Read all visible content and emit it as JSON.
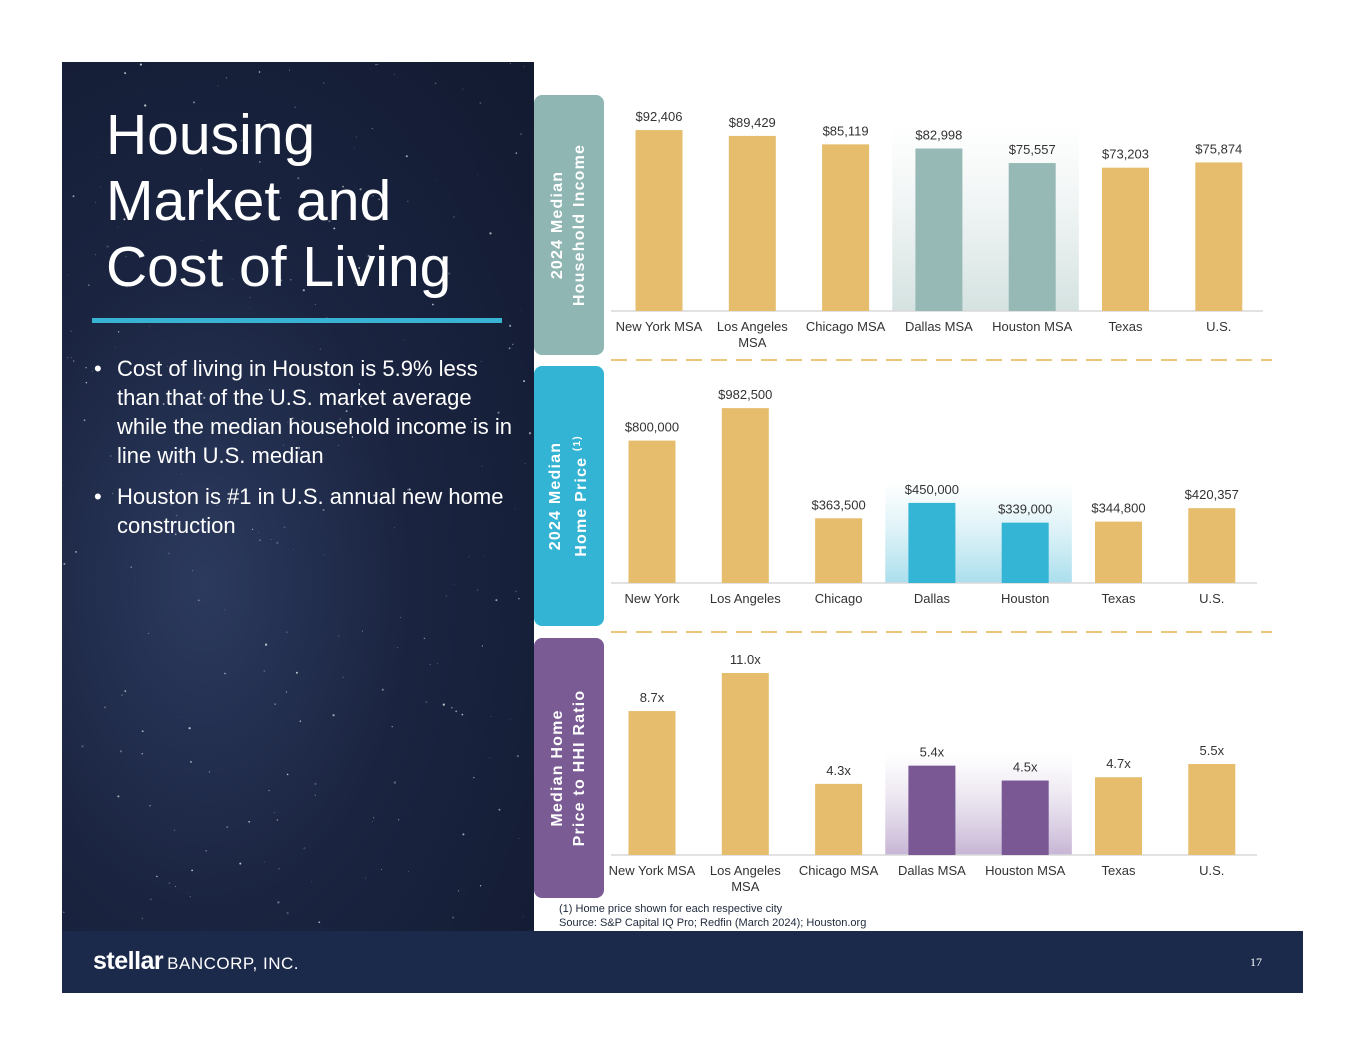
{
  "title": [
    "Housing",
    "Market and",
    "Cost of Living"
  ],
  "bullets": [
    "Cost of living in Houston is 5.9% less than that of the U.S. market average while the median household income is in line with U.S. median",
    "Houston is #1 in U.S. annual new home construction"
  ],
  "bullet_symbol": "•",
  "footnotes": {
    "note1": "(1) Home price shown for each respective city",
    "source": "Source: S&P Capital IQ Pro; Redfin (March 2024); Houston.org"
  },
  "footer": {
    "logo_main": "stellar",
    "logo_sub": "BANCORP, INC.",
    "page_number": "17"
  },
  "side_labels": [
    {
      "lines": [
        "2024 Median",
        "Household Income"
      ],
      "sup": ""
    },
    {
      "lines": [
        "2024 Median",
        "Home Price"
      ],
      "sup": "(1)"
    },
    {
      "lines": [
        "Median Home",
        "Price to HHI Ratio"
      ],
      "sup": ""
    }
  ],
  "colors": {
    "gold": "#e6bd6c",
    "teal_label": "#8fb6b3",
    "teal_bar": "#96b9b6",
    "blue_label": "#34b4d4",
    "blue_bar": "#35b5d6",
    "purple_label": "#7a5b94",
    "purple_bar": "#7a5894",
    "divider": "#e9c77a",
    "axis": "#d9d9d9",
    "text": "#333333"
  },
  "chart_data": [
    {
      "type": "bar",
      "title": "2024 Median Household Income",
      "categories": [
        "New York MSA",
        "Los Angeles MSA",
        "Chicago MSA",
        "Dallas MSA",
        "Houston MSA",
        "Texas",
        "U.S."
      ],
      "values": [
        92406,
        89429,
        85119,
        82998,
        75557,
        73203,
        75874
      ],
      "value_labels": [
        "$92,406",
        "$89,429",
        "$85,119",
        "$82,998",
        "$75,557",
        "$73,203",
        "$75,874"
      ],
      "highlight": [
        "Dallas MSA",
        "Houston MSA"
      ],
      "ylim": [
        0,
        95000
      ]
    },
    {
      "type": "bar",
      "title": "2024 Median Home Price (1)",
      "categories": [
        "New York",
        "Los Angeles",
        "Chicago",
        "Dallas",
        "Houston",
        "Texas",
        "U.S."
      ],
      "values": [
        800000,
        982500,
        363500,
        450000,
        339000,
        344800,
        420357
      ],
      "value_labels": [
        "$800,000",
        "$982,500",
        "$363,500",
        "$450,000",
        "$339,000",
        "$344,800",
        "$420,357"
      ],
      "highlight": [
        "Dallas",
        "Houston"
      ],
      "ylim": [
        0,
        1000000
      ]
    },
    {
      "type": "bar",
      "title": "Median Home Price to HHI Ratio",
      "categories": [
        "New York MSA",
        "Los Angeles MSA",
        "Chicago MSA",
        "Dallas MSA",
        "Houston MSA",
        "Texas",
        "U.S."
      ],
      "values": [
        8.7,
        11.0,
        4.3,
        5.4,
        4.5,
        4.7,
        5.5
      ],
      "value_labels": [
        "8.7x",
        "11.0x",
        "4.3x",
        "5.4x",
        "4.5x",
        "4.7x",
        "5.5x"
      ],
      "highlight": [
        "Dallas MSA",
        "Houston MSA"
      ],
      "ylim": [
        0,
        11.0
      ]
    }
  ]
}
